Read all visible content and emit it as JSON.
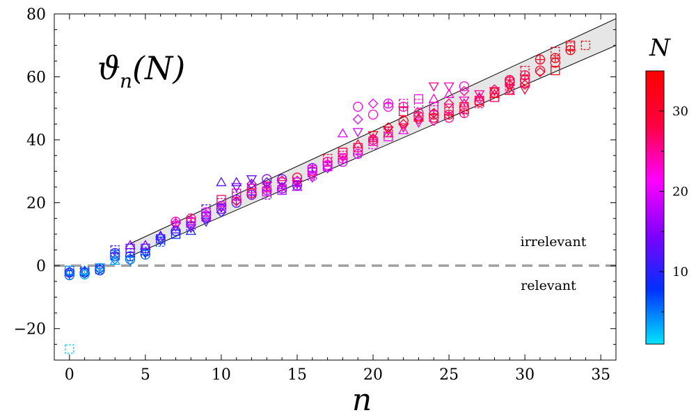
{
  "chart_data": {
    "type": "scatter",
    "title_main": "ϑ",
    "title_sub": "n",
    "title_arg": "(N)",
    "xlabel": "n",
    "ylabel": "",
    "xlim": [
      -1,
      36
    ],
    "ylim": [
      -30,
      80
    ],
    "xticks": [
      0,
      5,
      10,
      15,
      20,
      25,
      30,
      35
    ],
    "yticks": [
      -20,
      0,
      20,
      40,
      60,
      80
    ],
    "ytick_labels": [
      "−20",
      "0",
      "20",
      "40",
      "60",
      "80"
    ],
    "reference_line": {
      "y": 0,
      "style": "dashed"
    },
    "region_labels": {
      "above": "irrelevant",
      "below": "relevant"
    },
    "band": {
      "upper": {
        "x": [
          4,
          36
        ],
        "y": [
          7,
          78.5
        ]
      },
      "lower": {
        "x": [
          4,
          36
        ],
        "y": [
          3,
          70
        ]
      }
    },
    "colorbar": {
      "title": "N",
      "range": [
        1,
        35
      ],
      "ticks": [
        10,
        20,
        30
      ],
      "colors": [
        "#00e5ff",
        "#0030ff",
        "#8000ff",
        "#ff00ff",
        "#ff0040",
        "#ff0000"
      ]
    },
    "series": [
      {
        "name": "n=0",
        "x": [
          0,
          0,
          0,
          0,
          0,
          0,
          0
        ],
        "y": [
          -1.5,
          -2,
          -2.5,
          -1.8,
          -2.2,
          -3,
          -26.5
        ],
        "N": [
          5,
          7,
          9,
          3,
          11,
          6,
          2
        ]
      },
      {
        "name": "n=1",
        "x": [
          1,
          1,
          1,
          1,
          1,
          1
        ],
        "y": [
          -1.5,
          -2,
          -2.5,
          -2.2,
          -2.8,
          -1.8
        ],
        "N": [
          4,
          6,
          8,
          10,
          3,
          7
        ]
      },
      {
        "name": "n=2",
        "x": [
          2,
          2,
          2,
          2,
          2
        ],
        "y": [
          -0.5,
          -1,
          -1.5,
          -0.8,
          -1.2
        ],
        "N": [
          4,
          6,
          8,
          5,
          9
        ]
      },
      {
        "name": "n=3",
        "x": [
          3,
          3,
          3,
          3,
          3,
          3
        ],
        "y": [
          2,
          3,
          4,
          5,
          3.5,
          1.5
        ],
        "N": [
          5,
          8,
          10,
          12,
          6,
          3
        ]
      },
      {
        "name": "n=4",
        "x": [
          4,
          4,
          4,
          4,
          4,
          4
        ],
        "y": [
          2,
          3,
          4,
          5.5,
          6.5,
          1.5
        ],
        "N": [
          6,
          8,
          11,
          13,
          14,
          4
        ]
      },
      {
        "name": "n=5",
        "x": [
          5,
          5,
          5,
          5,
          5
        ],
        "y": [
          3.5,
          4.5,
          5.5,
          6.5,
          4
        ],
        "N": [
          6,
          9,
          12,
          14,
          8
        ]
      },
      {
        "name": "n=6",
        "x": [
          6,
          6,
          6,
          6,
          6
        ],
        "y": [
          7.5,
          8.5,
          9.5,
          8,
          9
        ],
        "N": [
          7,
          10,
          13,
          8,
          11
        ]
      },
      {
        "name": "n=7",
        "x": [
          7,
          7,
          7,
          7,
          7,
          7
        ],
        "y": [
          10,
          11.5,
          12.5,
          13.5,
          11,
          14
        ],
        "N": [
          8,
          12,
          15,
          20,
          10,
          24
        ]
      },
      {
        "name": "n=8",
        "x": [
          8,
          8,
          8,
          8,
          8,
          8
        ],
        "y": [
          11,
          12,
          13,
          14,
          15,
          12.5
        ],
        "N": [
          9,
          13,
          17,
          21,
          26,
          11
        ]
      },
      {
        "name": "n=9",
        "x": [
          9,
          9,
          9,
          9,
          9,
          9
        ],
        "y": [
          14,
          15,
          16,
          17,
          18,
          15.5
        ],
        "N": [
          10,
          14,
          18,
          22,
          12,
          16
        ]
      },
      {
        "name": "n=10",
        "x": [
          10,
          10,
          10,
          10,
          10,
          10,
          10
        ],
        "y": [
          17,
          18,
          19,
          20,
          21,
          26.5,
          18.5
        ],
        "N": [
          11,
          15,
          19,
          23,
          27,
          12,
          13
        ]
      },
      {
        "name": "n=11",
        "x": [
          11,
          11,
          11,
          11,
          11,
          11,
          11
        ],
        "y": [
          20,
          21,
          22,
          23,
          26.5,
          25,
          20.5
        ],
        "N": [
          12,
          16,
          20,
          24,
          13,
          14,
          28
        ]
      },
      {
        "name": "n=12",
        "x": [
          12,
          12,
          12,
          12,
          12,
          12,
          12
        ],
        "y": [
          22.5,
          23.5,
          24.5,
          25.5,
          27.5,
          26,
          23
        ],
        "N": [
          14,
          18,
          22,
          26,
          13,
          15,
          30
        ]
      },
      {
        "name": "n=13",
        "x": [
          13,
          13,
          13,
          13,
          13,
          13,
          13,
          13
        ],
        "y": [
          22.5,
          23.5,
          24.5,
          25.5,
          26.5,
          27.5,
          24,
          25
        ],
        "N": [
          16,
          20,
          24,
          28,
          13,
          15,
          18,
          22
        ]
      },
      {
        "name": "n=14",
        "x": [
          14,
          14,
          14,
          14,
          14,
          14,
          14
        ],
        "y": [
          24,
          25,
          26,
          27,
          27.5,
          24.5,
          26.5
        ],
        "N": [
          17,
          21,
          25,
          29,
          14,
          16,
          19
        ]
      },
      {
        "name": "n=15",
        "x": [
          15,
          15,
          15,
          15,
          15,
          15
        ],
        "y": [
          25,
          26,
          27,
          28,
          25.5,
          26.5
        ],
        "N": [
          18,
          22,
          26,
          30,
          15,
          17
        ]
      },
      {
        "name": "n=16",
        "x": [
          16,
          16,
          16,
          16,
          16,
          16
        ],
        "y": [
          28,
          29,
          30,
          31,
          28.5,
          30.5
        ],
        "N": [
          19,
          23,
          27,
          16,
          17,
          20
        ]
      },
      {
        "name": "n=17",
        "x": [
          17,
          17,
          17,
          17,
          17
        ],
        "y": [
          31,
          32,
          33,
          34,
          31.5
        ],
        "N": [
          17,
          21,
          25,
          28,
          19
        ]
      },
      {
        "name": "n=18",
        "x": [
          18,
          18,
          18,
          18,
          18,
          18
        ],
        "y": [
          33,
          34,
          35,
          36,
          42,
          34.5
        ],
        "N": [
          18,
          22,
          26,
          29,
          20,
          24
        ]
      },
      {
        "name": "n=19",
        "x": [
          19,
          19,
          19,
          19,
          19,
          19,
          19
        ],
        "y": [
          35.5,
          36.5,
          37.5,
          38.5,
          42.5,
          46.5,
          50.5
        ],
        "N": [
          19,
          23,
          27,
          30,
          19,
          20,
          21
        ]
      },
      {
        "name": "n=20",
        "x": [
          20,
          20,
          20,
          20,
          20,
          20,
          20
        ],
        "y": [
          38.5,
          39.5,
          40.5,
          41.5,
          51.5,
          48,
          40
        ],
        "N": [
          20,
          24,
          28,
          31,
          22,
          23,
          26
        ]
      },
      {
        "name": "n=21",
        "x": [
          21,
          21,
          21,
          21,
          21,
          21,
          21
        ],
        "y": [
          41,
          42,
          43,
          44,
          50.5,
          51.5,
          42.5
        ],
        "N": [
          21,
          25,
          29,
          32,
          23,
          22,
          27
        ]
      },
      {
        "name": "n=22",
        "x": [
          22,
          22,
          22,
          22,
          22,
          22,
          22
        ],
        "y": [
          43,
          44,
          45,
          46,
          50.5,
          51.5,
          49
        ],
        "N": [
          22,
          26,
          30,
          33,
          24,
          23,
          28
        ]
      },
      {
        "name": "n=23",
        "x": [
          23,
          23,
          23,
          23,
          23,
          23,
          23
        ],
        "y": [
          45.5,
          46.5,
          47.5,
          48.5,
          51.5,
          53,
          47
        ],
        "N": [
          23,
          27,
          31,
          25,
          24,
          22,
          29
        ]
      },
      {
        "name": "n=24",
        "x": [
          24,
          24,
          24,
          24,
          24,
          24,
          24,
          24
        ],
        "y": [
          46,
          47,
          48,
          49.5,
          50.5,
          53,
          57,
          48.5
        ],
        "N": [
          24,
          28,
          31,
          25,
          22,
          23,
          26,
          29
        ]
      },
      {
        "name": "n=25",
        "x": [
          25,
          25,
          25,
          25,
          25,
          25,
          25
        ],
        "y": [
          47,
          48,
          49,
          50,
          54.5,
          57,
          51.5
        ],
        "N": [
          25,
          29,
          32,
          26,
          23,
          24,
          27
        ]
      },
      {
        "name": "n=26",
        "x": [
          26,
          26,
          26,
          26,
          26,
          26,
          26
        ],
        "y": [
          48.5,
          49.5,
          50.5,
          51.5,
          52.5,
          55.5,
          57
        ],
        "N": [
          26,
          30,
          32,
          27,
          24,
          25,
          23
        ]
      },
      {
        "name": "n=27",
        "x": [
          27,
          27,
          27,
          27,
          27,
          27
        ],
        "y": [
          51.5,
          52.5,
          53.5,
          54.5,
          53,
          52
        ],
        "N": [
          27,
          31,
          28,
          25,
          24,
          29
        ]
      },
      {
        "name": "n=28",
        "x": [
          28,
          28,
          28,
          28,
          28
        ],
        "y": [
          53.5,
          54.5,
          55.5,
          56,
          55
        ],
        "N": [
          28,
          31,
          29,
          26,
          30
        ]
      },
      {
        "name": "n=29",
        "x": [
          29,
          29,
          29,
          29,
          29,
          29
        ],
        "y": [
          55.5,
          56.5,
          57.5,
          58.5,
          59,
          56
        ],
        "N": [
          29,
          31,
          30,
          27,
          28,
          26
        ]
      },
      {
        "name": "n=30",
        "x": [
          30,
          30,
          30,
          30,
          30,
          30
        ],
        "y": [
          56,
          57.5,
          59,
          60.5,
          62,
          58
        ],
        "N": [
          30,
          31,
          32,
          28,
          29,
          27
        ]
      },
      {
        "name": "n=31",
        "x": [
          31,
          31,
          31
        ],
        "y": [
          61.5,
          62,
          65.5
        ],
        "N": [
          30,
          31,
          32
        ]
      },
      {
        "name": "n=32",
        "x": [
          32,
          32,
          32,
          32
        ],
        "y": [
          64.5,
          66,
          68,
          62
        ],
        "N": [
          32,
          33,
          31,
          34
        ]
      },
      {
        "name": "n=33",
        "x": [
          33,
          33,
          33
        ],
        "y": [
          68.5,
          69.5,
          70
        ],
        "N": [
          33,
          34,
          32
        ]
      },
      {
        "name": "n=34",
        "x": [
          34
        ],
        "y": [
          70
        ],
        "N": [
          34
        ]
      }
    ]
  }
}
